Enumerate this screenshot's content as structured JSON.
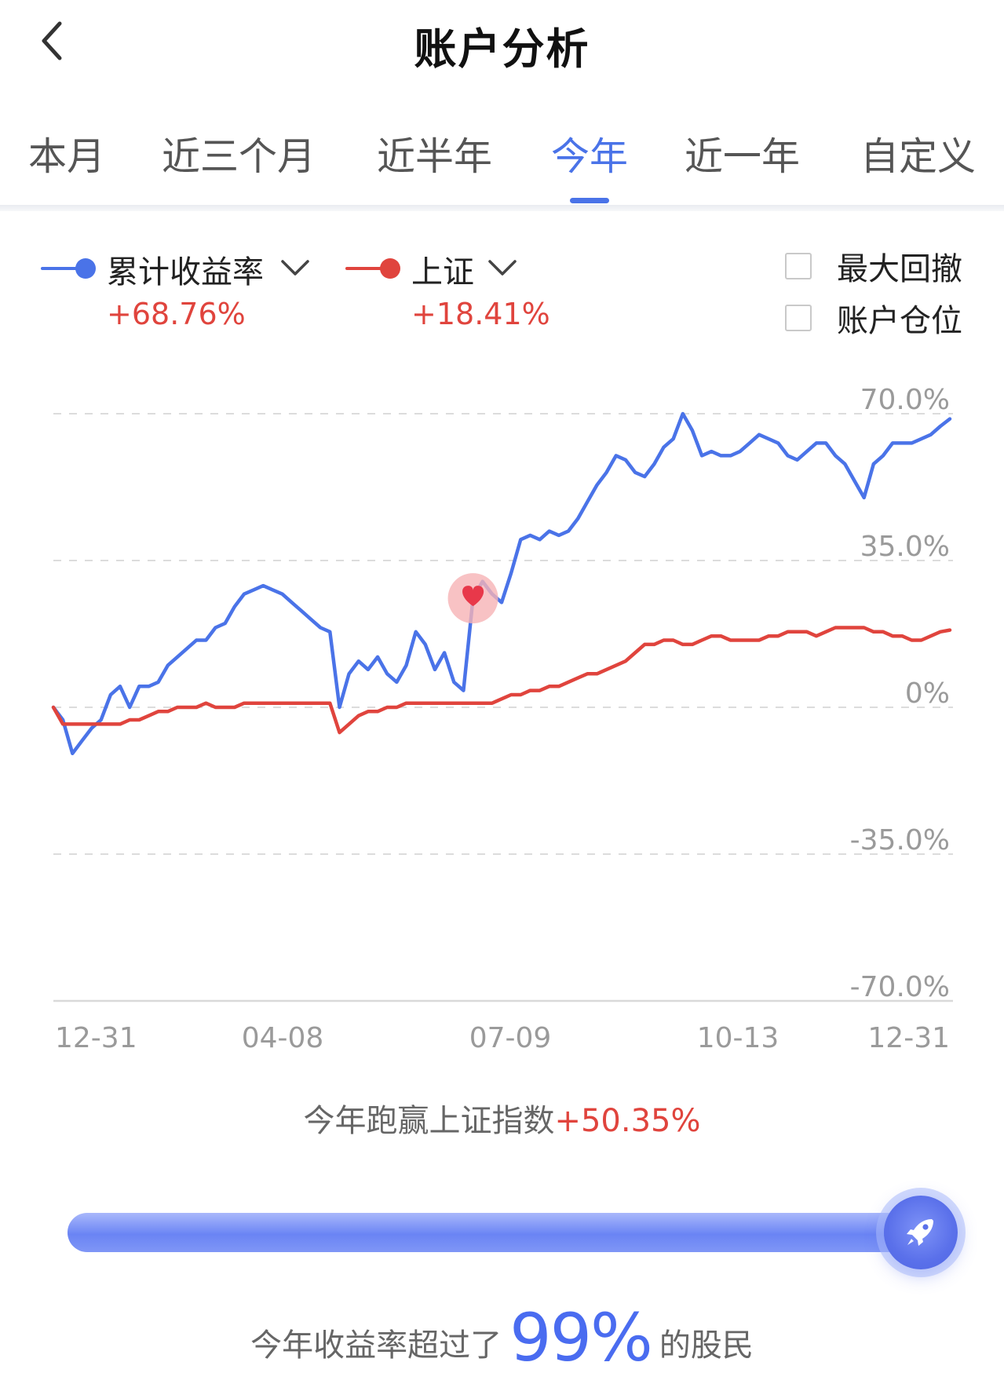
{
  "header": {
    "title": "账户分析"
  },
  "tabs": [
    {
      "label": "本月",
      "active": false
    },
    {
      "label": "近三个月",
      "active": false
    },
    {
      "label": "近半年",
      "active": false
    },
    {
      "label": "今年",
      "active": true
    },
    {
      "label": "近一年",
      "active": false
    },
    {
      "label": "自定义",
      "active": false
    }
  ],
  "legend": {
    "cumulative": {
      "label": "累计收益率",
      "value": "+68.76%",
      "color": "#4a73e8"
    },
    "index": {
      "label": "上证",
      "value": "+18.41%",
      "color": "#e0443d"
    }
  },
  "options": {
    "max_drawdown": {
      "label": "最大回撤",
      "checked": false
    },
    "position": {
      "label": "账户仓位",
      "checked": false
    }
  },
  "chart_data": {
    "type": "line",
    "y_ticks": [
      "70.0%",
      "35.0%",
      "0%",
      "-35.0%",
      "-70.0%"
    ],
    "ylim": [
      -70,
      70
    ],
    "x_ticks": [
      "12-31",
      "04-08",
      "07-09",
      "10-13",
      "12-31"
    ],
    "grid": "dashed horizontal",
    "legend_position": "top-left",
    "marker": "heart",
    "series": [
      {
        "name": "累计收益率",
        "color": "#4a73e8",
        "values": [
          0,
          -3,
          -11,
          -8,
          -5,
          -3,
          3,
          5,
          0,
          5,
          5,
          6,
          10,
          12,
          14,
          16,
          16,
          19,
          20,
          24,
          27,
          28,
          29,
          28,
          27,
          25,
          23,
          21,
          19,
          18,
          0,
          8,
          11,
          9,
          12,
          8,
          6,
          10,
          18,
          15,
          9,
          13,
          6,
          4,
          26,
          30,
          27,
          25,
          32,
          40,
          41,
          40,
          42,
          41,
          42,
          45,
          49,
          53,
          56,
          60,
          59,
          56,
          55,
          58,
          62,
          64,
          70,
          66,
          60,
          61,
          60,
          60,
          61,
          63,
          65,
          64,
          63,
          60,
          59,
          61,
          63,
          63,
          60,
          58,
          54,
          50,
          58,
          60,
          63,
          63,
          63,
          64,
          65,
          67,
          68.76
        ]
      },
      {
        "name": "上证",
        "color": "#e0443d",
        "values": [
          0,
          -4,
          -4,
          -4,
          -4,
          -4,
          -4,
          -4,
          -3,
          -3,
          -2,
          -1,
          -1,
          0,
          0,
          0,
          1,
          0,
          0,
          0,
          1,
          1,
          1,
          1,
          1,
          1,
          1,
          1,
          1,
          1,
          -6,
          -4,
          -2,
          -1,
          -1,
          0,
          0,
          1,
          1,
          1,
          1,
          1,
          1,
          1,
          1,
          1,
          1,
          2,
          3,
          3,
          4,
          4,
          5,
          5,
          6,
          7,
          8,
          8,
          9,
          10,
          11,
          13,
          15,
          15,
          16,
          16,
          15,
          15,
          16,
          17,
          17,
          16,
          16,
          16,
          16,
          17,
          17,
          18,
          18,
          18,
          17,
          18,
          19,
          19,
          19,
          19,
          18,
          18,
          17,
          17,
          16,
          16,
          17,
          18,
          18.41
        ]
      }
    ]
  },
  "summary": {
    "prefix": "今年跑赢上证指数",
    "value": "+50.35%"
  },
  "progress": {
    "fraction": 0.99
  },
  "rank": {
    "prefix": "今年收益率超过了",
    "value": "99%",
    "suffix": "的股民"
  }
}
